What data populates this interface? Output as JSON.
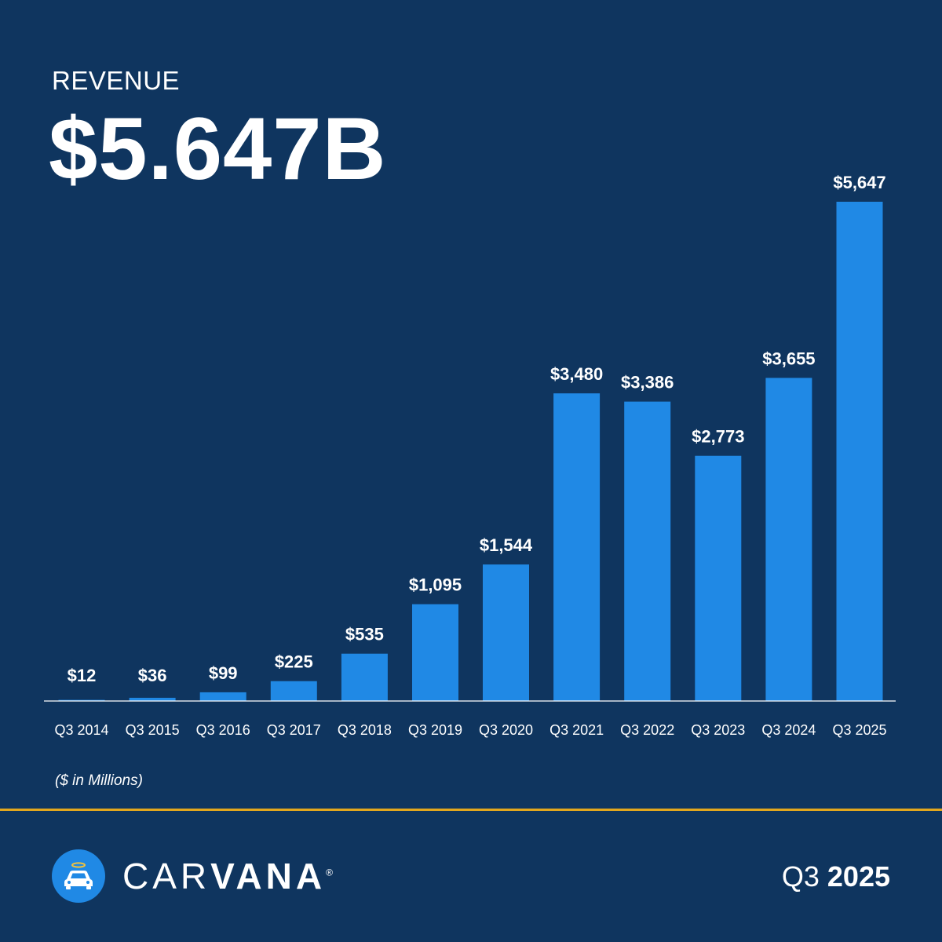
{
  "header": {
    "label": "REVENUE",
    "value": "$5.647B"
  },
  "chart_data": {
    "type": "bar",
    "title": "REVENUE",
    "categories": [
      "Q3 2014",
      "Q3 2015",
      "Q3 2016",
      "Q3 2017",
      "Q3 2018",
      "Q3 2019",
      "Q3 2020",
      "Q3 2021",
      "Q3 2022",
      "Q3 2023",
      "Q3 2024",
      "Q3 2025"
    ],
    "values": [
      12,
      36,
      99,
      225,
      535,
      1095,
      1544,
      3480,
      3386,
      2773,
      3655,
      5647
    ],
    "value_labels": [
      "$12",
      "$36",
      "$99",
      "$225",
      "$535",
      "$1,095",
      "$1,544",
      "$3,480",
      "$3,386",
      "$2,773",
      "$3,655",
      "$5,647"
    ],
    "xlabel": "",
    "ylabel": "$ in Millions",
    "ylim": [
      0,
      5647
    ],
    "grid": false,
    "bar_color": "#2089e5"
  },
  "footer": {
    "units_note": "($ in Millions)",
    "brand_light": "CAR",
    "brand_bold": "VANA",
    "brand_mark": "®",
    "period_quarter": "Q3",
    "period_year": "2025"
  },
  "icons": {
    "logo": "car-with-halo-icon"
  },
  "colors": {
    "background": "#0f355f",
    "bar": "#2089e5",
    "divider": "#e2a71e",
    "text": "#ffffff"
  }
}
